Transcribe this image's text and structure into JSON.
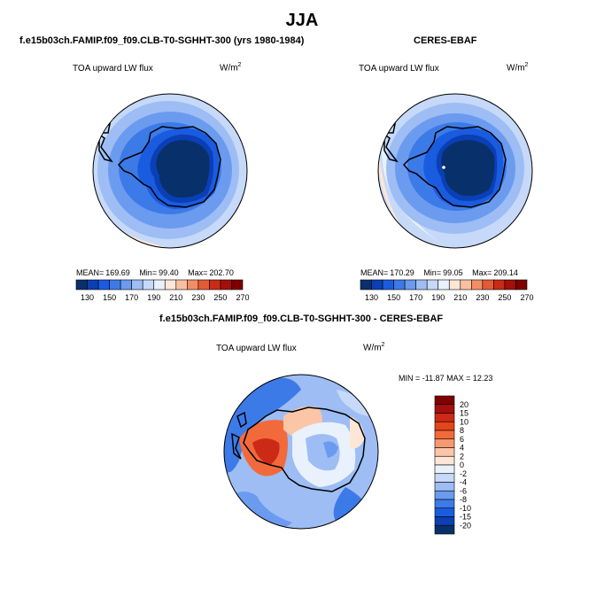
{
  "title": "JJA",
  "panels": [
    {
      "title": "f.e15b03ch.FAMIP.f09_f09.CLB-T0-SGHHT-300 (yrs 1980-1984)",
      "variable": "TOA upward LW flux",
      "units_base": "W/m",
      "units_exp": "2",
      "mean_label": "MEAN=",
      "mean_value": "169.69",
      "min_label": "Min=",
      "min_value": "99.40",
      "max_label": "Max=",
      "max_value": "202.70"
    },
    {
      "title": "CERES-EBAF",
      "variable": "TOA upward LW flux",
      "units_base": "W/m",
      "units_exp": "2",
      "mean_label": "MEAN=",
      "mean_value": "170.29",
      "min_label": "Min=",
      "min_value": "99.05",
      "max_label": "Max=",
      "max_value": "209.14"
    },
    {
      "title": "f.e15b03ch.FAMIP.f09_f09.CLB-T0-SGHHT-300 - CERES-EBAF",
      "variable": "TOA upward LW flux",
      "units_base": "W/m",
      "units_exp": "2",
      "minmax_text": "MIN = -11.87 MAX = 12.23"
    }
  ],
  "colorbar_abs": {
    "ticks": [
      "130",
      "150",
      "170",
      "190",
      "210",
      "230",
      "250",
      "270"
    ],
    "colors": [
      "#08306b",
      "#0b3fb5",
      "#1a5ce0",
      "#3c7ae8",
      "#6a9bef",
      "#9dbdf4",
      "#c6d9f8",
      "#e9f1fc",
      "#fde6d6",
      "#f9c0a0",
      "#f08f66",
      "#e35b36",
      "#c92b14",
      "#a3100a",
      "#7f0000"
    ]
  },
  "colorbar_diff": {
    "ticks": [
      "20",
      "15",
      "10",
      "8",
      "6",
      "4",
      "2",
      "0",
      "-2",
      "-4",
      "-6",
      "-8",
      "-10",
      "-15",
      "-20"
    ],
    "colors": [
      "#7f0000",
      "#a50f0f",
      "#cc2a16",
      "#e5451c",
      "#f26a3b",
      "#f79970",
      "#fbc6a8",
      "#fde6d6",
      "#e9f1fc",
      "#c6d9f8",
      "#9dbdf4",
      "#6a9bef",
      "#3c7ae8",
      "#1a5ce0",
      "#0b3fb5",
      "#08306b"
    ]
  },
  "chart_data": [
    {
      "type": "heatmap",
      "title": "f.e15b03ch.FAMIP.f09_f09.CLB-T0-SGHHT-300 (yrs 1980-1984)",
      "variable": "TOA upward LW flux",
      "units": "W/m^2",
      "projection": "south polar stereographic",
      "mean": 169.69,
      "min": 99.4,
      "max": 202.7,
      "levels": [
        130,
        140,
        150,
        160,
        170,
        180,
        190,
        200,
        210,
        220,
        230,
        240,
        250,
        260,
        270
      ]
    },
    {
      "type": "heatmap",
      "title": "CERES-EBAF",
      "variable": "TOA upward LW flux",
      "units": "W/m^2",
      "projection": "south polar stereographic",
      "mean": 170.29,
      "min": 99.05,
      "max": 209.14,
      "levels": [
        130,
        140,
        150,
        160,
        170,
        180,
        190,
        200,
        210,
        220,
        230,
        240,
        250,
        260,
        270
      ]
    },
    {
      "type": "heatmap",
      "title": "f.e15b03ch.FAMIP.f09_f09.CLB-T0-SGHHT-300 - CERES-EBAF",
      "variable": "TOA upward LW flux",
      "units": "W/m^2",
      "projection": "south polar stereographic",
      "min": -11.87,
      "max": 12.23,
      "levels": [
        -20,
        -15,
        -10,
        -8,
        -6,
        -4,
        -2,
        0,
        2,
        4,
        6,
        8,
        10,
        15,
        20
      ]
    }
  ]
}
